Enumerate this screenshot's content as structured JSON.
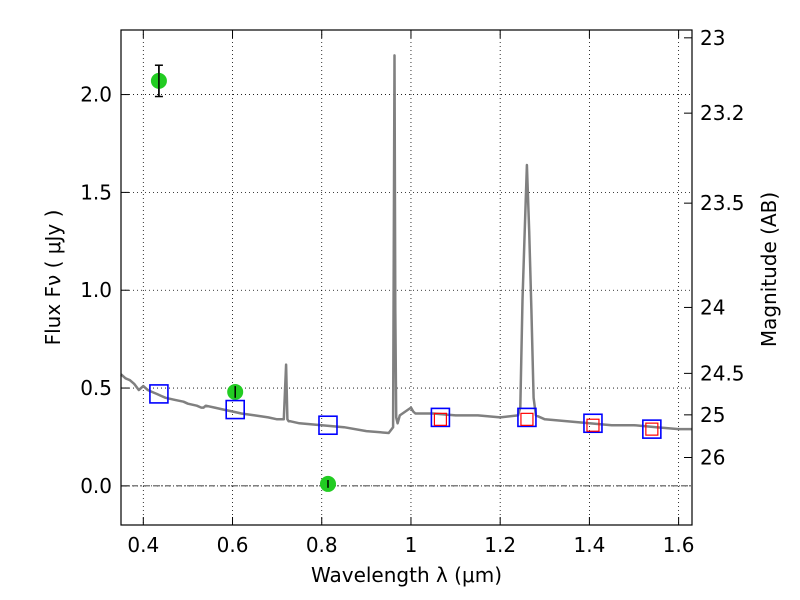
{
  "chart_data": {
    "type": "line",
    "xlabel": "Wavelength  λ (μm)",
    "ylabel": "Flux  Fν  ( μJy )",
    "ylabel_right": "Magnitude (AB)",
    "xlim": [
      0.35,
      1.63
    ],
    "ylim": [
      -0.2,
      2.33
    ],
    "x_ticks": [
      {
        "value": 0.4,
        "label": "0.4"
      },
      {
        "value": 0.6,
        "label": "0.6"
      },
      {
        "value": 0.8,
        "label": "0.8"
      },
      {
        "value": 1.0,
        "label": "1"
      },
      {
        "value": 1.2,
        "label": "1.2"
      },
      {
        "value": 1.4,
        "label": "1.4"
      },
      {
        "value": 1.6,
        "label": "1.6"
      }
    ],
    "y_ticks": [
      {
        "value": 0.0,
        "label": "0.0"
      },
      {
        "value": 0.5,
        "label": "0.5"
      },
      {
        "value": 1.0,
        "label": "1.0"
      },
      {
        "value": 1.5,
        "label": "1.5"
      },
      {
        "value": 2.0,
        "label": "2.0"
      }
    ],
    "right_ticks": [
      {
        "label": "23",
        "flux": 2.29
      },
      {
        "label": "23.2",
        "flux": 1.905
      },
      {
        "label": "23.5",
        "flux": 1.445
      },
      {
        "label": "24",
        "flux": 0.912
      },
      {
        "label": "24.5",
        "flux": 0.575
      },
      {
        "label": "25",
        "flux": 0.363
      },
      {
        "label": "26",
        "flux": 0.145
      }
    ],
    "grid": true,
    "zero_line": true,
    "colors": {
      "model": "#808080",
      "observed": "#22cc22",
      "model_photometry": "#0000ff",
      "synthetic_photometry": "#ff0000",
      "errorbar": "#000000"
    },
    "series": [
      {
        "style": "model-spectrum",
        "x": [
          0.35,
          0.36,
          0.37,
          0.38,
          0.39,
          0.4,
          0.41,
          0.42,
          0.43,
          0.44,
          0.45,
          0.47,
          0.49,
          0.5,
          0.52,
          0.53,
          0.535,
          0.54,
          0.56,
          0.58,
          0.6,
          0.62,
          0.65,
          0.68,
          0.7,
          0.715,
          0.72,
          0.723,
          0.726,
          0.73,
          0.75,
          0.8,
          0.85,
          0.9,
          0.95,
          0.96,
          0.963,
          0.965,
          0.967,
          0.97,
          0.975,
          1.0,
          1.005,
          1.01,
          1.05,
          1.1,
          1.15,
          1.2,
          1.24,
          1.245,
          1.25,
          1.255,
          1.26,
          1.265,
          1.27,
          1.275,
          1.28,
          1.3,
          1.35,
          1.4,
          1.45,
          1.5,
          1.55,
          1.6,
          1.63
        ],
        "y": [
          0.57,
          0.55,
          0.54,
          0.52,
          0.49,
          0.51,
          0.49,
          0.48,
          0.47,
          0.46,
          0.45,
          0.44,
          0.43,
          0.42,
          0.41,
          0.4,
          0.4,
          0.41,
          0.4,
          0.39,
          0.38,
          0.37,
          0.36,
          0.35,
          0.34,
          0.34,
          0.62,
          0.34,
          0.33,
          0.33,
          0.32,
          0.31,
          0.3,
          0.28,
          0.27,
          0.3,
          2.2,
          0.9,
          0.35,
          0.32,
          0.36,
          0.4,
          0.38,
          0.37,
          0.37,
          0.36,
          0.36,
          0.35,
          0.36,
          0.4,
          0.95,
          1.3,
          1.64,
          1.3,
          0.9,
          0.45,
          0.36,
          0.34,
          0.33,
          0.32,
          0.31,
          0.31,
          0.3,
          0.29,
          0.29
        ]
      },
      {
        "style": "observed-photometry",
        "points": [
          {
            "x": 0.435,
            "y": 2.07,
            "err": 0.08
          },
          {
            "x": 0.606,
            "y": 0.48,
            "err": 0.03
          },
          {
            "x": 0.814,
            "y": 0.01,
            "err": 0.02
          }
        ]
      },
      {
        "style": "model-photometry",
        "points": [
          {
            "x": 0.435,
            "y": 0.47
          },
          {
            "x": 0.606,
            "y": 0.39
          },
          {
            "x": 0.814,
            "y": 0.31
          },
          {
            "x": 1.066,
            "y": 0.35
          },
          {
            "x": 1.26,
            "y": 0.35
          },
          {
            "x": 1.408,
            "y": 0.32
          },
          {
            "x": 1.54,
            "y": 0.29
          }
        ]
      },
      {
        "style": "synthetic-photometry",
        "points": [
          {
            "x": 1.066,
            "y": 0.34
          },
          {
            "x": 1.26,
            "y": 0.34
          },
          {
            "x": 1.408,
            "y": 0.31
          },
          {
            "x": 1.54,
            "y": 0.29
          }
        ]
      }
    ]
  }
}
